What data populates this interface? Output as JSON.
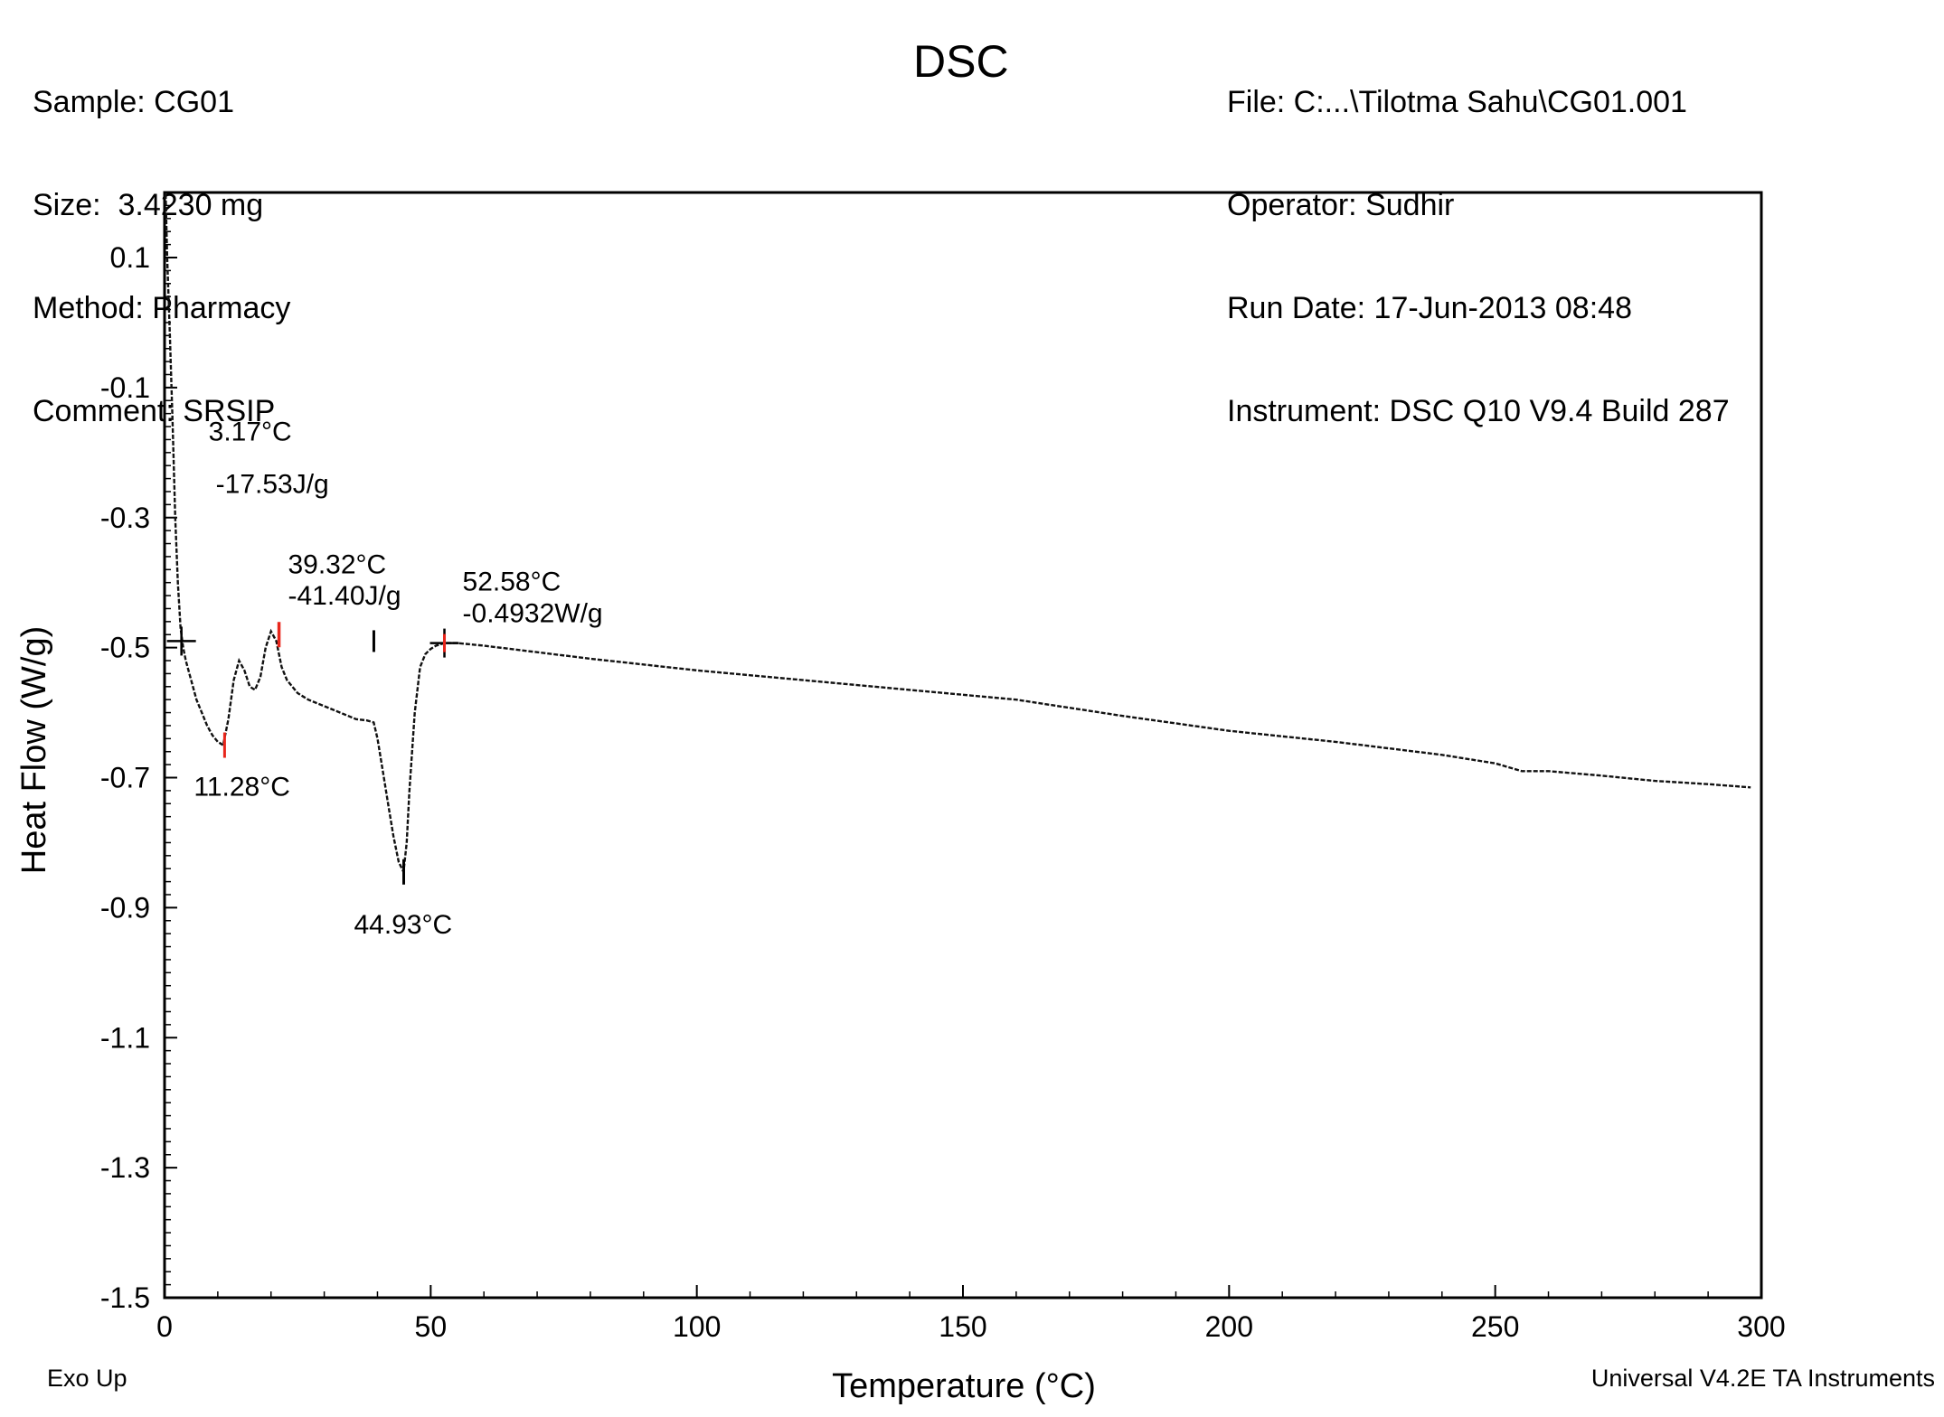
{
  "header": {
    "left": [
      "Sample: CG01",
      "Size:  3.4230 mg",
      "Method: Pharmacy",
      "Comment: SRSIP"
    ],
    "title": "DSC",
    "right": [
      "File: C:...\\Tilotma Sahu\\CG01.001",
      "Operator: Sudhir",
      "Run Date: 17-Jun-2013 08:48",
      "Instrument: DSC Q10 V9.4 Build 287"
    ]
  },
  "footer": {
    "left": "Exo Up",
    "right": "Universal V4.2E TA Instruments"
  },
  "chart_data": {
    "type": "line",
    "title": "DSC",
    "xlabel": "Temperature (°C)",
    "ylabel": "Heat Flow (W/g)",
    "xlim": [
      0,
      300
    ],
    "ylim": [
      -1.5,
      0.2
    ],
    "x_ticks": [
      "0",
      "50",
      "100",
      "150",
      "200",
      "250",
      "300"
    ],
    "x_tick_values": [
      0,
      50,
      100,
      150,
      200,
      250,
      300
    ],
    "y_ticks": [
      "0.1",
      "-0.1",
      "-0.3",
      "-0.5",
      "-0.7",
      "-0.9",
      "-1.1",
      "-1.3",
      "-1.5"
    ],
    "y_tick_values": [
      0.1,
      -0.1,
      -0.3,
      -0.5,
      -0.7,
      -0.9,
      -1.1,
      -1.3,
      -1.5
    ],
    "grid": false,
    "series": [
      {
        "x": [
          0.2,
          0.5,
          1,
          1.5,
          2,
          2.5,
          3,
          3.5,
          4,
          5,
          6,
          7,
          8,
          9,
          10,
          11,
          12,
          13,
          14,
          15,
          16,
          17,
          18,
          19,
          20,
          21,
          22,
          23,
          24,
          25,
          27,
          30,
          33,
          36,
          38,
          39.3,
          40,
          41,
          42,
          43,
          44,
          44.9,
          45.5,
          46,
          47,
          48,
          49,
          50,
          51,
          52.58,
          55,
          60,
          70,
          80,
          100,
          120,
          140,
          160,
          180,
          200,
          220,
          240,
          250,
          255,
          260,
          270,
          280,
          290,
          298
        ],
        "y": [
          0.2,
          0.1,
          -0.02,
          -0.15,
          -0.3,
          -0.4,
          -0.47,
          -0.5,
          -0.52,
          -0.55,
          -0.58,
          -0.6,
          -0.62,
          -0.635,
          -0.645,
          -0.65,
          -0.61,
          -0.55,
          -0.52,
          -0.535,
          -0.56,
          -0.565,
          -0.545,
          -0.5,
          -0.475,
          -0.49,
          -0.53,
          -0.55,
          -0.56,
          -0.57,
          -0.58,
          -0.59,
          -0.6,
          -0.61,
          -0.612,
          -0.615,
          -0.64,
          -0.69,
          -0.74,
          -0.79,
          -0.83,
          -0.845,
          -0.8,
          -0.72,
          -0.6,
          -0.53,
          -0.51,
          -0.502,
          -0.497,
          -0.493,
          -0.493,
          -0.497,
          -0.507,
          -0.517,
          -0.535,
          -0.55,
          -0.565,
          -0.58,
          -0.605,
          -0.628,
          -0.645,
          -0.665,
          -0.678,
          -0.69,
          -0.69,
          -0.697,
          -0.705,
          -0.71,
          -0.715
        ]
      }
    ],
    "annotations": [
      {
        "lines": [
          "3.17°C",
          "-17.53J/g"
        ],
        "x": 3.17,
        "y": -0.49,
        "marker": "cross",
        "color": "#000000"
      },
      {
        "lines": [
          "11.28°C"
        ],
        "x": 11.28,
        "y": -0.65,
        "marker": "tick",
        "color": "#e8261c"
      },
      {
        "lines": [
          "39.32°C",
          "-41.40J/g"
        ],
        "x": 39.32,
        "y": -0.49,
        "marker": "bar",
        "color": "#000000"
      },
      {
        "lines": [
          "44.93°C"
        ],
        "x": 44.93,
        "y": -0.845,
        "marker": "tick",
        "color": "#000000"
      },
      {
        "lines": [
          "52.58°C",
          "-0.4932W/g"
        ],
        "x": 52.58,
        "y": -0.493,
        "marker": "cross",
        "color": "#000000"
      }
    ],
    "extra_markers": [
      {
        "x": 21.5,
        "y": -0.48,
        "color": "#e8261c"
      }
    ]
  }
}
